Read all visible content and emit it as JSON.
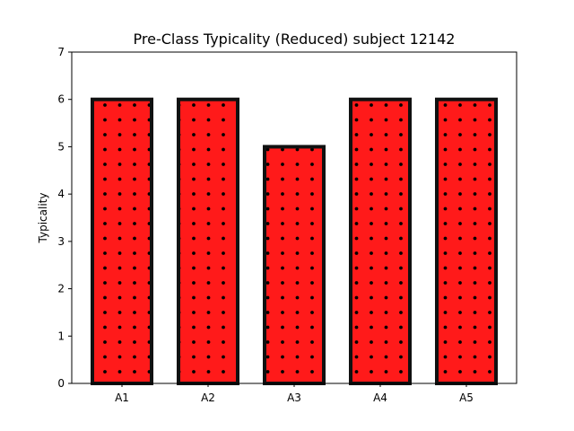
{
  "chart_data": {
    "type": "bar",
    "title": "Pre-Class Typicality (Reduced) subject 12142",
    "xlabel": "",
    "ylabel": "Typicality",
    "categories": [
      "A1",
      "A2",
      "A3",
      "A4",
      "A5"
    ],
    "values": [
      6,
      6,
      5,
      6,
      6
    ],
    "ylim": [
      0,
      7
    ],
    "yticks": [
      "0",
      "1",
      "2",
      "3",
      "4",
      "5",
      "6",
      "7"
    ],
    "grid": false,
    "bar_color": "#ff1a1a",
    "bar_edge_color": "#111111",
    "hatch": "dots"
  }
}
